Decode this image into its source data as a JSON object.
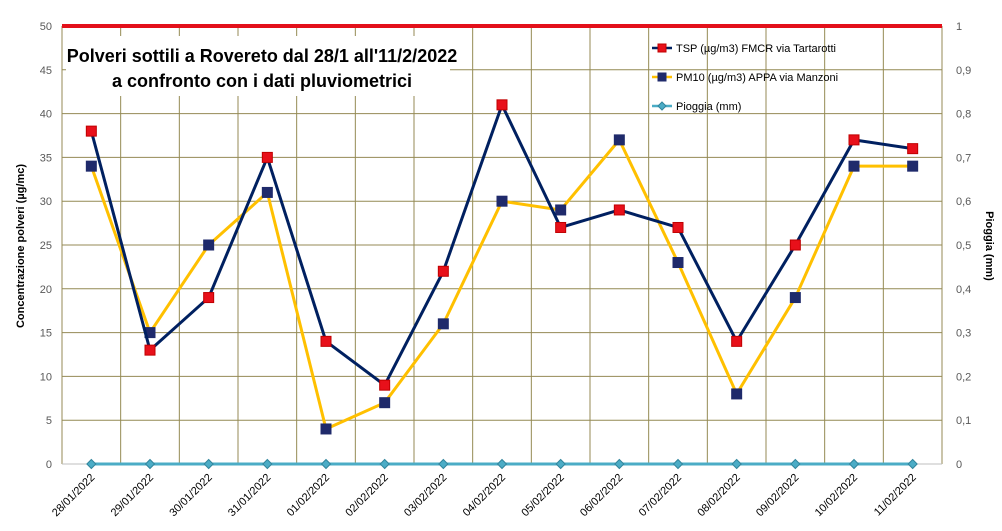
{
  "chart_data": {
    "type": "line",
    "title_lines": [
      "Polveri sottili a Rovereto dal 28/1 all'11/2/2022",
      "a confronto con i dati pluviometrici"
    ],
    "ylabel": "Concentrazione polveri  (µg/mc)",
    "y2label": "Pioggia  (mm)",
    "ylim": [
      0,
      50
    ],
    "y2lim": [
      0,
      1
    ],
    "yticks": [
      "0",
      "5",
      "10",
      "15",
      "20",
      "25",
      "30",
      "35",
      "40",
      "45",
      "50"
    ],
    "y2ticks": [
      "0",
      "0,1",
      "0,2",
      "0,3",
      "0,4",
      "0,5",
      "0,6",
      "0,7",
      "0,8",
      "0,9",
      "1"
    ],
    "categories": [
      "28/01/2022",
      "29/01/2022",
      "30/01/2022",
      "31/01/2022",
      "01/02/2022",
      "02/02/2022",
      "03/02/2022",
      "04/02/2022",
      "05/02/2022",
      "06/02/2022",
      "07/02/2022",
      "08/02/2022",
      "09/02/2022",
      "10/02/2022",
      "11/02/2022"
    ],
    "series": [
      {
        "name": "TSP (µg/m3) FMCR via Tartarotti",
        "axis": "left",
        "color": "#002060",
        "marker_fill": "#e8101a",
        "marker_edge": "#c00000",
        "values": [
          38,
          13,
          19,
          35,
          14,
          9,
          22,
          41,
          27,
          29,
          27,
          14,
          25,
          37,
          36
        ]
      },
      {
        "name": "PM10 (µg/m3) APPA via Manzoni",
        "axis": "left",
        "color": "#ffc000",
        "marker_fill": "#1f2a6b",
        "marker_edge": "#1f2a6b",
        "values": [
          34,
          15,
          25,
          31,
          4,
          7,
          16,
          30,
          29,
          37,
          23,
          8,
          19,
          34,
          34
        ]
      },
      {
        "name": "Pioggia (mm)",
        "axis": "right",
        "color": "#4bacc6",
        "marker_fill": "#4bacc6",
        "marker_edge": "#31859c",
        "values": [
          0,
          0,
          0,
          0,
          0,
          0,
          0,
          0,
          0,
          0,
          0,
          0,
          0,
          0,
          0
        ]
      }
    ],
    "legend_position": "top-right",
    "grid": true,
    "colors": {
      "grid": "#948a54",
      "top_border": "#e3101a",
      "title_box": "#ffffff"
    }
  }
}
